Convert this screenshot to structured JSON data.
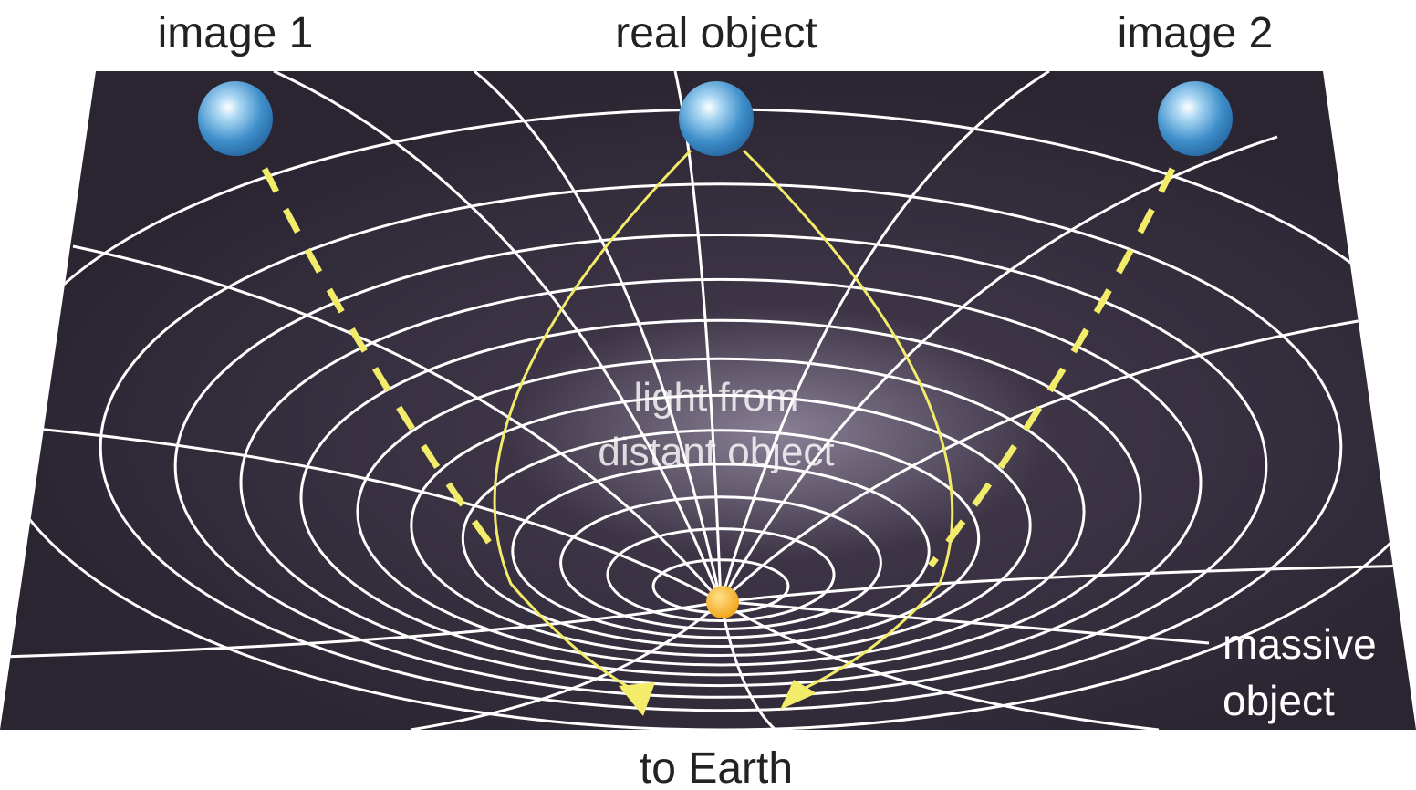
{
  "labels": {
    "image_1": "image 1",
    "real_object": "real object",
    "image_2": "image 2",
    "light_from_distant_object": [
      "light from",
      "distant object"
    ],
    "massive_object": [
      "massive",
      "object"
    ],
    "to_earth": "to Earth"
  }
}
